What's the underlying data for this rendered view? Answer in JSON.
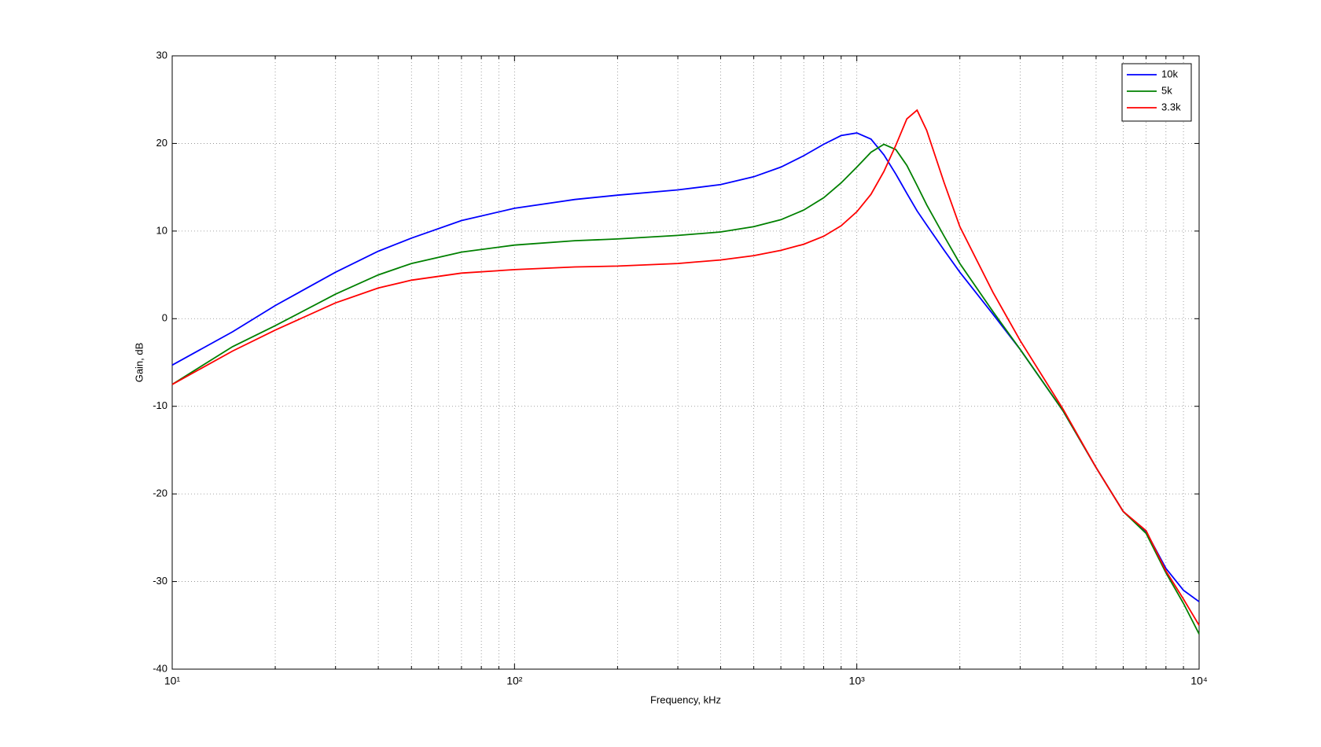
{
  "chart_data": {
    "type": "line",
    "xlabel": "Frequency, kHz",
    "ylabel": "Gain, dB",
    "xscale": "log",
    "xlim": [
      10,
      10000
    ],
    "ylim": [
      -40,
      30
    ],
    "xticks": [
      {
        "value": 10,
        "label": "10¹"
      },
      {
        "value": 100,
        "label": "10²"
      },
      {
        "value": 1000,
        "label": "10³"
      },
      {
        "value": 10000,
        "label": "10⁴"
      }
    ],
    "xminorticks": [
      20,
      30,
      40,
      50,
      60,
      70,
      80,
      90,
      200,
      300,
      400,
      500,
      600,
      700,
      800,
      900,
      2000,
      3000,
      4000,
      5000,
      6000,
      7000,
      8000,
      9000
    ],
    "yticks": [
      -40,
      -30,
      -20,
      -10,
      0,
      10,
      20,
      30
    ],
    "grid": true,
    "legend": "upper right",
    "x": [
      10,
      15,
      20,
      30,
      40,
      50,
      70,
      100,
      150,
      200,
      300,
      400,
      500,
      600,
      700,
      800,
      900,
      1000,
      1100,
      1200,
      1300,
      1400,
      1500,
      1600,
      1800,
      2000,
      2500,
      3000,
      4000,
      5000,
      6000,
      7000,
      8000,
      9000,
      10000
    ],
    "series": [
      {
        "name": "10k",
        "color": "#0000ff",
        "values": [
          -5.3,
          -1.5,
          1.5,
          5.3,
          7.7,
          9.2,
          11.2,
          12.6,
          13.6,
          14.1,
          14.7,
          15.3,
          16.2,
          17.3,
          18.6,
          19.9,
          20.9,
          21.2,
          20.5,
          18.7,
          16.5,
          14.3,
          12.3,
          10.7,
          7.8,
          5.3,
          0.5,
          -3.5,
          -10.5,
          -17,
          -22,
          -24.3,
          -28.5,
          -31,
          -32.3
        ]
      },
      {
        "name": "5k",
        "color": "#008000",
        "values": [
          -7.5,
          -3.2,
          -0.8,
          2.8,
          5,
          6.3,
          7.6,
          8.4,
          8.9,
          9.1,
          9.5,
          9.9,
          10.5,
          11.3,
          12.4,
          13.8,
          15.5,
          17.3,
          19,
          19.9,
          19.3,
          17.5,
          15.2,
          13,
          9.4,
          6.3,
          0.8,
          -3.5,
          -10.5,
          -17,
          -22,
          -24.5,
          -29,
          -32.5,
          -36
        ]
      },
      {
        "name": "3.3k",
        "color": "#ff0000",
        "values": [
          -7.5,
          -3.7,
          -1.3,
          1.8,
          3.5,
          4.4,
          5.2,
          5.6,
          5.9,
          6,
          6.3,
          6.7,
          7.2,
          7.8,
          8.5,
          9.4,
          10.6,
          12.2,
          14.2,
          16.8,
          19.8,
          22.8,
          23.8,
          21.5,
          15.5,
          10.5,
          3,
          -2.5,
          -10.3,
          -17,
          -22,
          -24.2,
          -28.8,
          -32,
          -35
        ]
      }
    ]
  }
}
